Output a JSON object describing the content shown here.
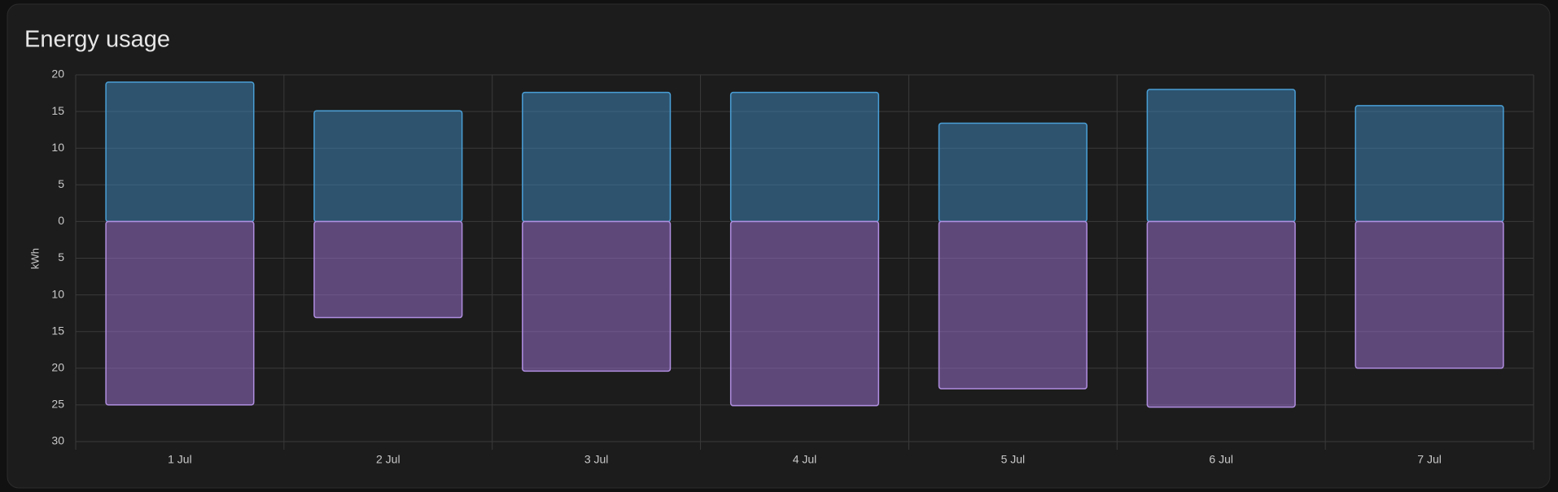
{
  "chart_data": {
    "type": "bar",
    "title": "Energy usage",
    "y_label": "kWh",
    "categories": [
      "1 Jul",
      "2 Jul",
      "3 Jul",
      "4 Jul",
      "5 Jul",
      "6 Jul",
      "7 Jul"
    ],
    "series": [
      {
        "color": "#4a9fd6",
        "values": [
          19.0,
          15.1,
          17.6,
          17.6,
          13.4,
          18.0,
          15.8
        ]
      },
      {
        "color": "#b08ee0",
        "values": [
          -25.0,
          -13.1,
          -20.4,
          -25.1,
          -22.8,
          -25.3,
          -20.0
        ]
      }
    ],
    "ylim": [
      -30,
      20
    ],
    "yticks": [
      20,
      15,
      10,
      5,
      0,
      {
        "value": -5,
        "label": "5"
      },
      {
        "value": -10,
        "label": "10"
      },
      {
        "value": -15,
        "label": "15"
      },
      {
        "value": -20,
        "label": "20"
      },
      {
        "value": -25,
        "label": "25"
      },
      {
        "value": -30,
        "label": "30"
      }
    ],
    "grid": true
  }
}
